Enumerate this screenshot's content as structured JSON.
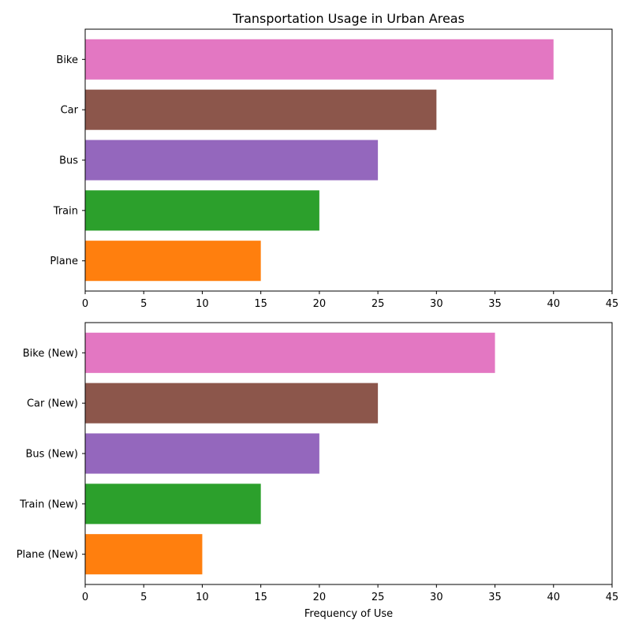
{
  "chart_data": [
    {
      "type": "bar",
      "orientation": "horizontal",
      "title": "Transportation Usage in Urban Areas",
      "xlabel": "",
      "ylabel": "",
      "xlim": [
        0,
        45
      ],
      "xticks": [
        0,
        5,
        10,
        15,
        20,
        25,
        30,
        35,
        40,
        45
      ],
      "grid": false,
      "categories": [
        "Plane",
        "Train",
        "Bus",
        "Car",
        "Bike"
      ],
      "values": [
        15,
        20,
        25,
        30,
        40
      ],
      "colors": [
        "#ff7f0e",
        "#2ca02c",
        "#9467bd",
        "#8c564b",
        "#e377c2"
      ]
    },
    {
      "type": "bar",
      "orientation": "horizontal",
      "title": "",
      "xlabel": "Frequency of Use",
      "ylabel": "",
      "xlim": [
        0,
        45
      ],
      "xticks": [
        0,
        5,
        10,
        15,
        20,
        25,
        30,
        35,
        40,
        45
      ],
      "grid": false,
      "categories": [
        "Plane (New)",
        "Train (New)",
        "Bus (New)",
        "Car (New)",
        "Bike (New)"
      ],
      "values": [
        10,
        15,
        20,
        25,
        35
      ],
      "colors": [
        "#ff7f0e",
        "#2ca02c",
        "#9467bd",
        "#8c564b",
        "#e377c2"
      ]
    }
  ]
}
